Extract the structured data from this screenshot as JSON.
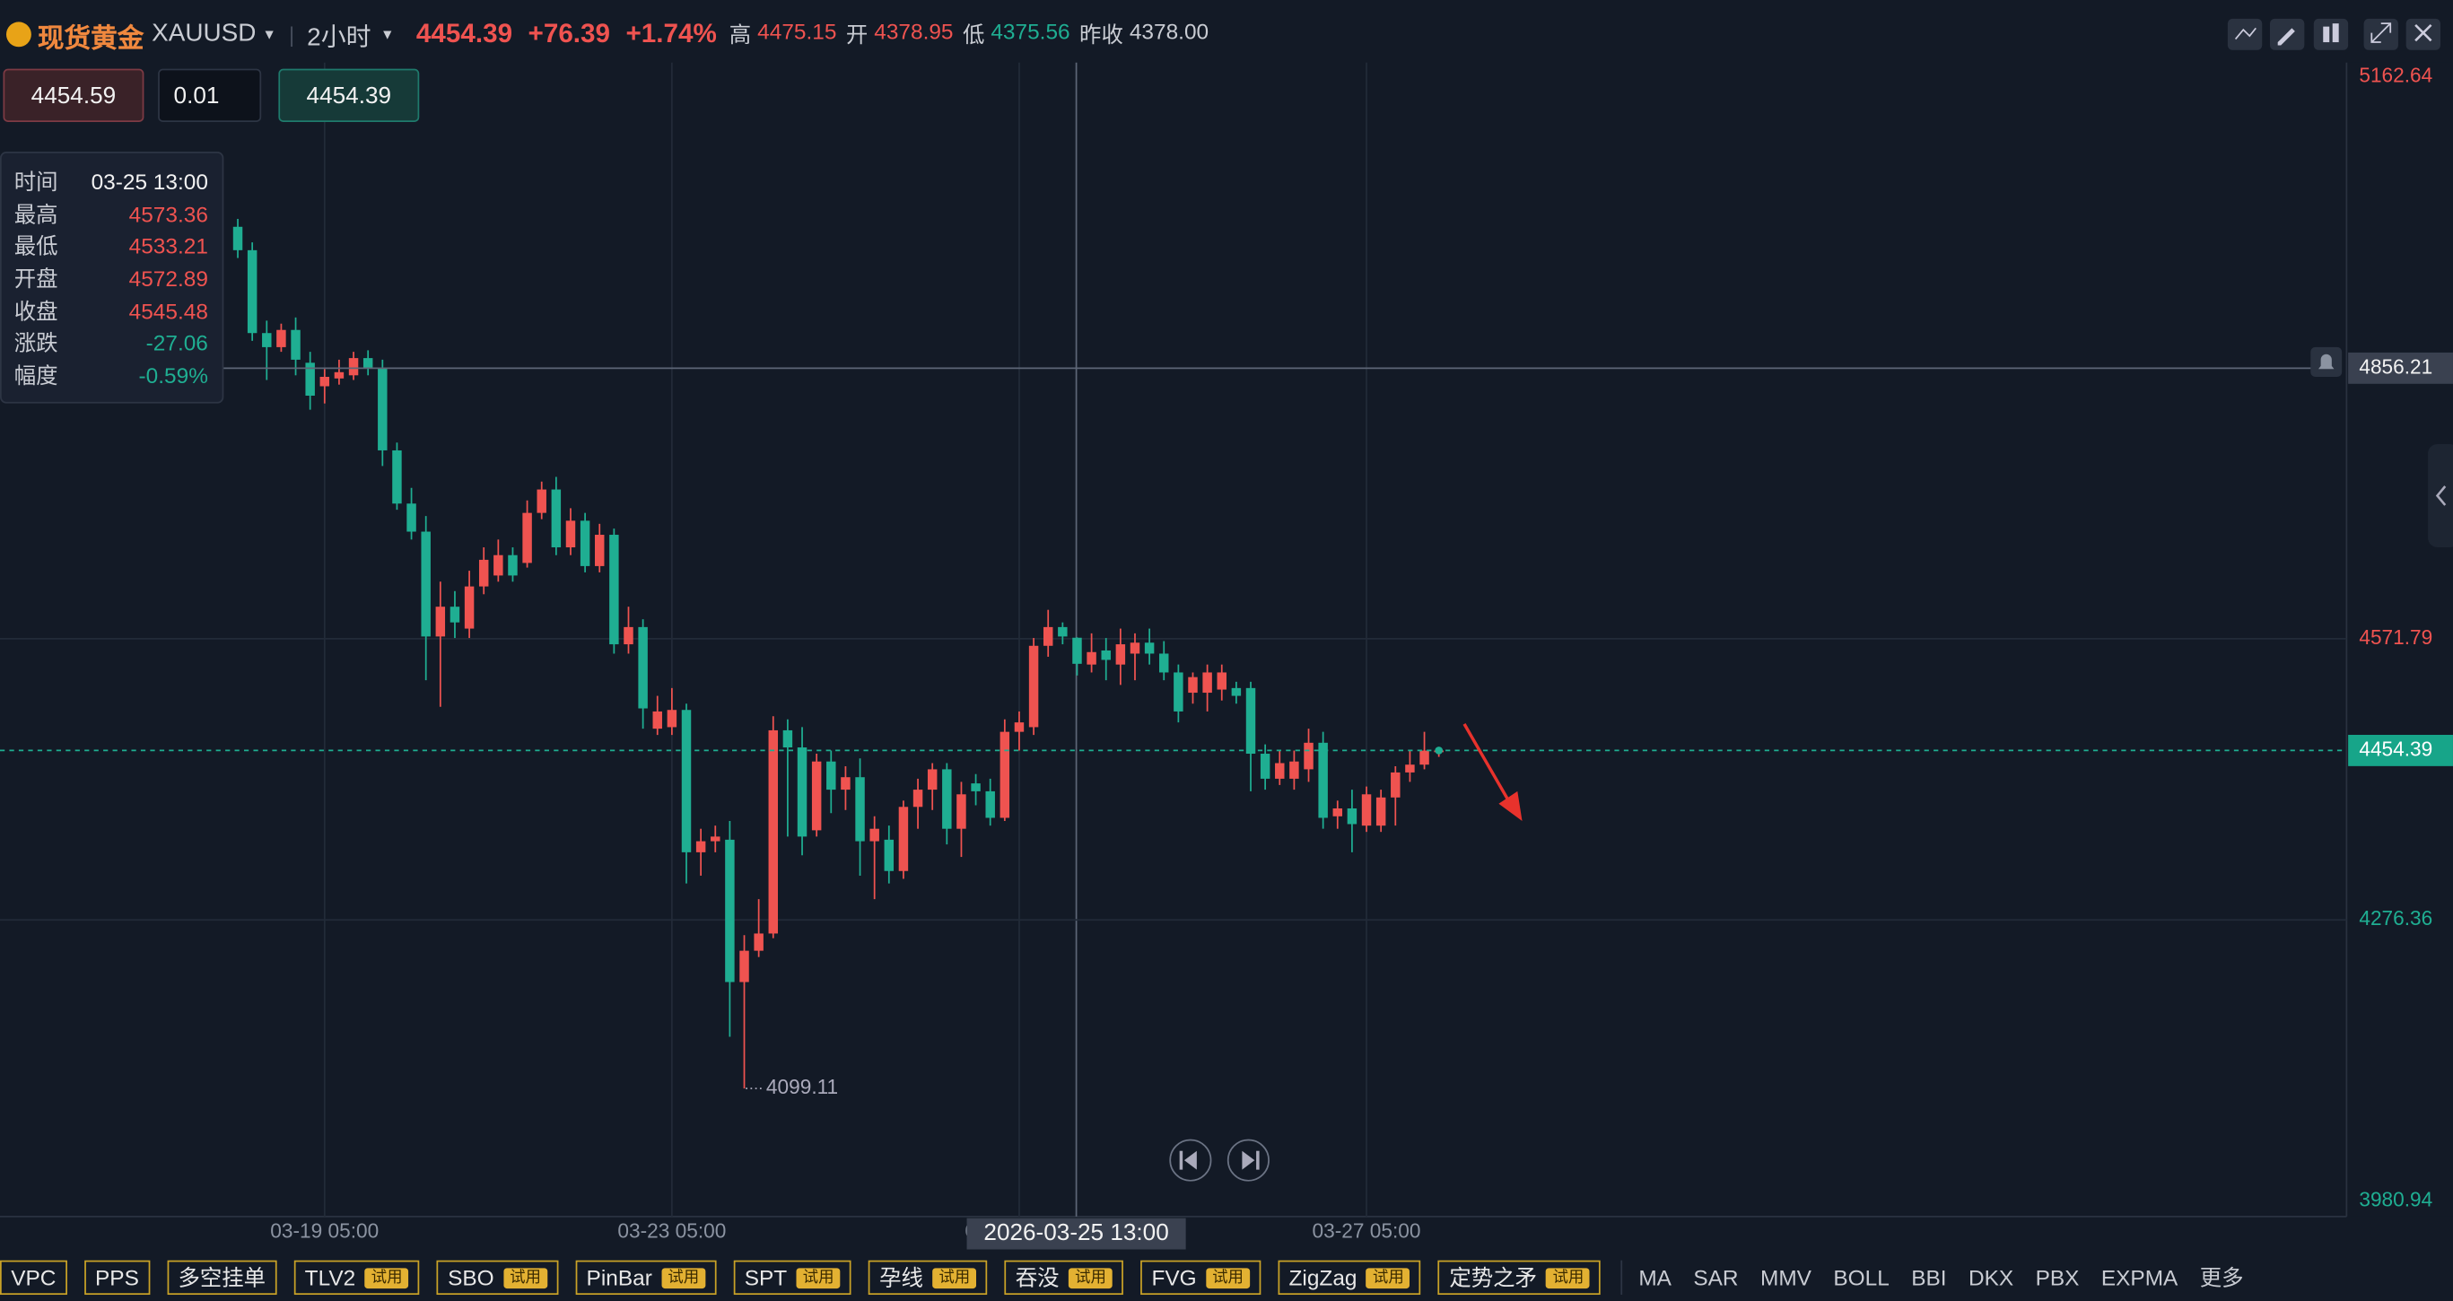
{
  "header": {
    "symbol_name": "现货黄金",
    "symbol": "XAUUSD",
    "interval": "2小时",
    "price": "4454.39",
    "change": "+76.39",
    "change_pct": "+1.74%",
    "stats": [
      {
        "label": "高",
        "value": "4475.15"
      },
      {
        "label": "开",
        "value": "4378.95"
      },
      {
        "label": "低",
        "value": "4375.56"
      },
      {
        "label": "昨收",
        "value": "4378.00"
      }
    ]
  },
  "order": {
    "sell": "4454.59",
    "quantity": "0.01",
    "buy": "4454.39"
  },
  "tooltip": {
    "rows": [
      [
        "时间",
        "03-25 13:00"
      ],
      [
        "最高",
        "4573.36"
      ],
      [
        "最低",
        "4533.21"
      ],
      [
        "开盘",
        "4572.89"
      ],
      [
        "收盘",
        "4545.48"
      ],
      [
        "涨跌",
        "-27.06"
      ],
      [
        "幅度",
        "-0.59%"
      ]
    ]
  },
  "chart_data": {
    "type": "candlestick",
    "up_color": "#ef5350",
    "down_color": "#1fae92",
    "grid": true,
    "ylim": [
      3980.94,
      5162.64
    ],
    "yticks": [
      5162.64,
      4571.79,
      4276.36,
      3980.94
    ],
    "current_price": 4454.39,
    "crosshair": {
      "time": "2026-03-25 13:00",
      "price": 4856.21
    },
    "categories": [
      null,
      null,
      null,
      null,
      null,
      null,
      "03-19 05:00",
      null,
      null,
      null,
      null,
      null,
      null,
      null,
      null,
      null,
      null,
      null,
      null,
      null,
      null,
      null,
      null,
      null,
      null,
      null,
      null,
      null,
      null,
      null,
      "03-23 05:00",
      null,
      null,
      null,
      null,
      null,
      null,
      null,
      null,
      null,
      null,
      null,
      null,
      null,
      null,
      null,
      null,
      null,
      null,
      null,
      null,
      null,
      null,
      null,
      "03-25 05:00",
      null,
      null,
      null,
      null,
      null,
      null,
      null,
      null,
      null,
      null,
      null,
      null,
      null,
      null,
      null,
      null,
      null,
      null,
      null,
      null,
      null,
      null,
      null,
      "03-27 05:00",
      null,
      null,
      null,
      null,
      null
    ],
    "open": [
      5004.8,
      4980.2,
      4893.1,
      4878.3,
      4896.4,
      4861.9,
      4837.2,
      4845.4,
      4848.7,
      4866.8,
      4856.9,
      4769.8,
      4713.9,
      4684.4,
      4574.2,
      4605.5,
      4582.5,
      4626.8,
      4638.3,
      4659.7,
      4651.5,
      4704.1,
      4728.7,
      4667.9,
      4695.9,
      4648.2,
      4681.1,
      4566.0,
      4584.1,
      4477.3,
      4478.9,
      4497.0,
      4347.4,
      4359.0,
      4360.6,
      4211.0,
      4243.9,
      4262.0,
      4475.6,
      4457.6,
      4370.5,
      4442.8,
      4413.2,
      4426.3,
      4359.0,
      4360.6,
      4327.7,
      4395.1,
      4413.2,
      4434.6,
      4372.1,
      4419.8,
      4411.5,
      4383.6,
      4474.0,
      4478.9,
      4564.4,
      4584.1,
      4572.89,
      4544.7,
      4559.5,
      4544.7,
      4556.2,
      4567.7,
      4556.2,
      4536.4,
      4515.1,
      4515.1,
      4518.4,
      4520.0,
      4520.0,
      4451.0,
      4424.7,
      4424.7,
      4434.6,
      4462.5,
      4385.2,
      4393.5,
      4375.4,
      4375.4,
      4405.0,
      4431.3,
      4439.5,
      4452.6
    ],
    "high": [
      5013.1,
      4988.4,
      4906.2,
      4903.0,
      4909.5,
      4873.4,
      4855.3,
      4865.1,
      4873.4,
      4875.0,
      4865.1,
      4778.0,
      4730.4,
      4700.8,
      4631.8,
      4621.9,
      4643.3,
      4667.9,
      4676.1,
      4667.9,
      4717.2,
      4737.0,
      4741.9,
      4709.0,
      4704.1,
      4692.6,
      4687.6,
      4605.5,
      4592.3,
      4511.8,
      4520.0,
      4503.6,
      4372.1,
      4375.4,
      4380.3,
      4260.3,
      4298.1,
      4490.4,
      4487.1,
      4478.9,
      4451.0,
      4454.3,
      4437.8,
      4446.1,
      4385.2,
      4375.4,
      4401.7,
      4424.7,
      4441.1,
      4441.1,
      4421.4,
      4429.6,
      4424.7,
      4487.1,
      4495.4,
      4572.6,
      4602.2,
      4589.0,
      4573.36,
      4577.5,
      4572.6,
      4582.5,
      4577.5,
      4582.5,
      4569.3,
      4544.7,
      4536.4,
      4544.7,
      4544.7,
      4526.6,
      4526.6,
      4460.8,
      4454.3,
      4454.3,
      4477.3,
      4474.0,
      4401.7,
      4413.2,
      4416.5,
      4413.2,
      4437.8,
      4454.3,
      4474.0,
      4455.9
    ],
    "low": [
      4972.0,
      4884.9,
      4843.8,
      4873.4,
      4848.7,
      4812.6,
      4819.1,
      4838.9,
      4843.8,
      4848.7,
      4753.4,
      4707.4,
      4676.1,
      4528.2,
      4500.3,
      4572.6,
      4572.6,
      4618.6,
      4631.8,
      4631.8,
      4646.6,
      4697.5,
      4659.7,
      4659.7,
      4641.6,
      4641.6,
      4556.2,
      4556.2,
      4477.3,
      4470.7,
      4470.7,
      4314.6,
      4322.8,
      4347.4,
      4153.5,
      4099.11,
      4237.3,
      4257.1,
      4363.9,
      4344.2,
      4363.9,
      4388.5,
      4391.8,
      4322.8,
      4298.1,
      4314.6,
      4319.5,
      4372.1,
      4391.8,
      4355.7,
      4342.5,
      4396.8,
      4375.4,
      4380.3,
      4454.3,
      4470.7,
      4552.9,
      4566.0,
      4533.21,
      4536.4,
      4528.2,
      4523.3,
      4528.2,
      4544.7,
      4528.2,
      4483.9,
      4503.6,
      4495.4,
      4506.9,
      4503.6,
      4411.5,
      4413.2,
      4418.1,
      4413.2,
      4421.4,
      4372.1,
      4372.1,
      4347.4,
      4368.8,
      4368.8,
      4375.4,
      4421.4,
      4434.6,
      4447.7
    ],
    "close": [
      4980.2,
      4893.1,
      4878.3,
      4896.4,
      4865.1,
      4827.3,
      4847.1,
      4852.0,
      4866.8,
      4856.9,
      4769.8,
      4713.9,
      4684.4,
      4574.2,
      4605.5,
      4589.0,
      4626.8,
      4654.8,
      4659.7,
      4638.3,
      4704.1,
      4728.7,
      4667.9,
      4695.9,
      4648.2,
      4681.1,
      4566.0,
      4584.1,
      4498.6,
      4495.4,
      4497.0,
      4347.4,
      4359.0,
      4363.9,
      4211.0,
      4243.9,
      4262.0,
      4475.6,
      4457.6,
      4363.9,
      4442.8,
      4413.2,
      4426.3,
      4359.0,
      4372.1,
      4327.7,
      4395.1,
      4413.2,
      4434.6,
      4372.1,
      4408.3,
      4411.5,
      4383.6,
      4474.0,
      4483.9,
      4564.4,
      4584.1,
      4574.2,
      4545.48,
      4557.8,
      4549.6,
      4566.0,
      4567.7,
      4556.2,
      4536.4,
      4495.4,
      4531.5,
      4536.4,
      4536.4,
      4511.8,
      4451.0,
      4424.7,
      4441.1,
      4442.8,
      4462.5,
      4383.6,
      4393.5,
      4377.0,
      4408.3,
      4405.0,
      4431.3,
      4439.5,
      4454.3,
      4454.39
    ]
  },
  "toolbar": {
    "buttons": [
      {
        "label": "VPC"
      },
      {
        "label": "PPS"
      },
      {
        "label": "多空挂单"
      },
      {
        "label": "TLV2",
        "badge": "试用"
      },
      {
        "label": "SBO",
        "badge": "试用"
      },
      {
        "label": "PinBar",
        "badge": "试用"
      },
      {
        "label": "SPT",
        "badge": "试用"
      },
      {
        "label": "孕线",
        "badge": "试用"
      },
      {
        "label": "吞没",
        "badge": "试用"
      },
      {
        "label": "FVG",
        "badge": "试用"
      },
      {
        "label": "ZigZag",
        "badge": "试用"
      },
      {
        "label": "定势之矛",
        "badge": "试用"
      }
    ],
    "indicators": [
      "MA",
      "SAR",
      "MMV",
      "BOLL",
      "BBI",
      "DKX",
      "PBX",
      "EXPMA",
      "更多"
    ]
  }
}
